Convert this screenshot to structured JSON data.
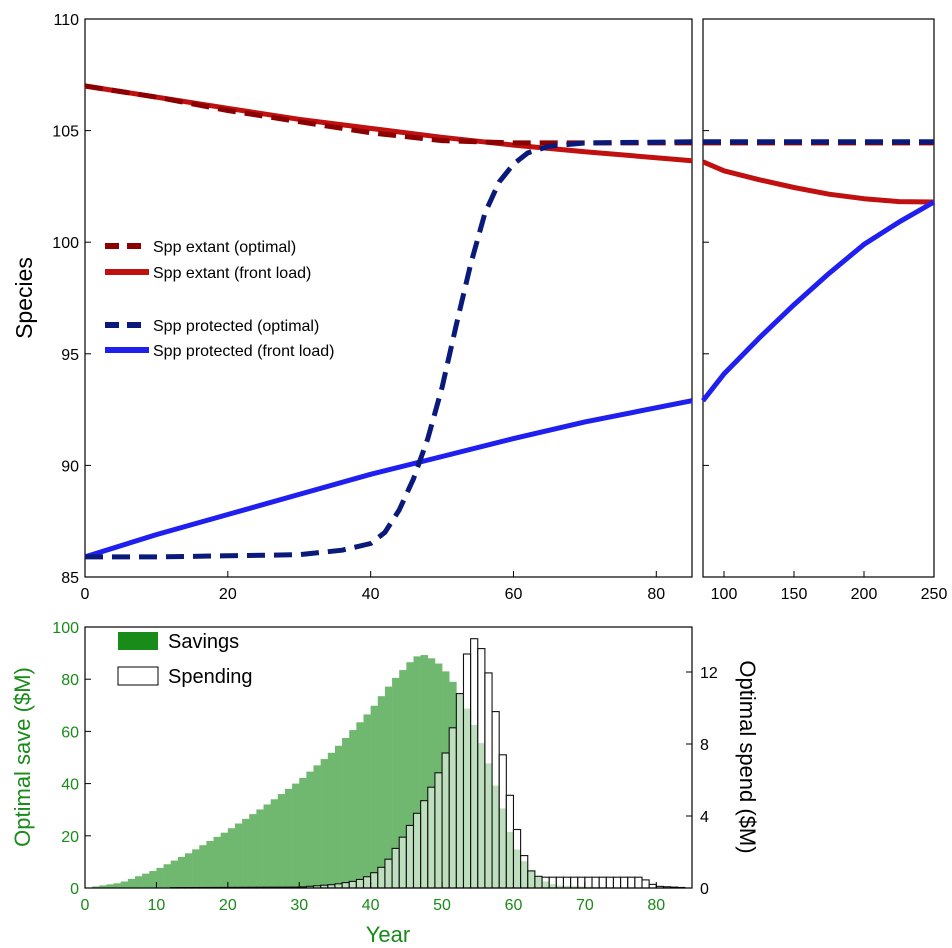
{
  "colors": {
    "extant_optimal": "#8b0000",
    "extant_front": "#c0100f",
    "protected_optimal": "#0a1a7a",
    "protected_front": "#1f1ff0",
    "savings": "#70b86f",
    "spending_edge": "#111111",
    "left_axis": "#188b18",
    "axis": "#000000"
  },
  "chart_data": [
    {
      "type": "line",
      "panel": "top-left",
      "ylabel": "Species",
      "xlim": [
        0,
        85
      ],
      "ylim": [
        85,
        110
      ],
      "xticks": [
        "0",
        "20",
        "40",
        "60",
        "80"
      ],
      "yticks": [
        "85",
        "90",
        "95",
        "100",
        "105",
        "110"
      ],
      "legend": {
        "placement": "middle-left",
        "entries": [
          "Spp extant  (optimal)",
          "Spp extant  (front load)",
          "Spp protected (optimal)",
          "Spp protected (front load)"
        ]
      },
      "series": [
        {
          "name": "Spp extant  (optimal)",
          "style": "dashed",
          "x": [
            0,
            10,
            20,
            30,
            40,
            50,
            60,
            70,
            85
          ],
          "y": [
            107.0,
            106.5,
            105.9,
            105.4,
            104.9,
            104.55,
            104.45,
            104.45,
            104.45
          ]
        },
        {
          "name": "Spp extant  (front load)",
          "style": "solid",
          "x": [
            0,
            10,
            20,
            30,
            40,
            50,
            60,
            70,
            85
          ],
          "y": [
            107.0,
            106.5,
            106.0,
            105.5,
            105.1,
            104.7,
            104.35,
            104.05,
            103.65
          ]
        },
        {
          "name": "Spp protected (optimal)",
          "style": "dashed",
          "x": [
            0,
            10,
            20,
            30,
            36,
            40,
            42,
            44,
            46,
            48,
            50,
            52,
            54,
            56,
            58,
            60,
            62,
            65,
            70,
            85
          ],
          "y": [
            85.9,
            85.9,
            85.95,
            86.0,
            86.2,
            86.5,
            87.0,
            88.0,
            89.4,
            91.2,
            93.5,
            96.3,
            99.0,
            101.3,
            102.7,
            103.5,
            104.0,
            104.3,
            104.45,
            104.5
          ]
        },
        {
          "name": "Spp protected (front load)",
          "style": "solid",
          "x": [
            0,
            10,
            20,
            30,
            40,
            50,
            60,
            70,
            85
          ],
          "y": [
            85.9,
            86.9,
            87.8,
            88.7,
            89.6,
            90.4,
            91.2,
            91.95,
            92.9
          ]
        }
      ]
    },
    {
      "type": "line",
      "panel": "top-right",
      "xlim": [
        85,
        250
      ],
      "ylim": [
        85,
        110
      ],
      "xticks": [
        "100",
        "150",
        "200",
        "250"
      ],
      "series": [
        {
          "name": "Spp extant  (optimal)",
          "style": "dashed",
          "x": [
            85,
            250
          ],
          "y": [
            104.45,
            104.45
          ]
        },
        {
          "name": "Spp extant  (front load)",
          "style": "solid",
          "x": [
            85,
            100,
            125,
            150,
            175,
            200,
            225,
            250
          ],
          "y": [
            103.6,
            103.2,
            102.8,
            102.45,
            102.15,
            101.95,
            101.82,
            101.8
          ]
        },
        {
          "name": "Spp protected (optimal)",
          "style": "dashed",
          "x": [
            85,
            250
          ],
          "y": [
            104.5,
            104.5
          ]
        },
        {
          "name": "Spp protected (front load)",
          "style": "solid",
          "x": [
            85,
            100,
            125,
            150,
            175,
            200,
            225,
            250
          ],
          "y": [
            92.9,
            94.1,
            95.7,
            97.2,
            98.6,
            99.9,
            100.9,
            101.8
          ]
        }
      ]
    },
    {
      "type": "bar",
      "panel": "bottom",
      "xlabel": "Year",
      "ylabel": "Optimal save ($M)",
      "ylabel_right": "Optimal spend ($M)",
      "xlim": [
        0,
        85
      ],
      "ylim": [
        0,
        100
      ],
      "ylim_right": [
        0,
        14.5
      ],
      "xticks": [
        "0",
        "10",
        "20",
        "30",
        "40",
        "50",
        "60",
        "70",
        "80"
      ],
      "yticks": [
        "0",
        "20",
        "40",
        "60",
        "80",
        "100"
      ],
      "yticks_right": [
        "0",
        "4",
        "8",
        "12"
      ],
      "legend": {
        "placement": "top-left",
        "entries": [
          "Savings",
          "Spending"
        ]
      },
      "series": [
        {
          "name": "Savings",
          "axis": "left",
          "x": [
            0,
            5,
            10,
            15,
            20,
            25,
            30,
            35,
            40,
            43,
            46,
            47,
            48,
            50,
            52,
            54,
            56,
            58,
            60,
            62,
            64,
            66,
            70,
            75,
            80,
            85
          ],
          "y": [
            0,
            2,
            7,
            14,
            22,
            31,
            41,
            53,
            68,
            79,
            88,
            89.5,
            89,
            85,
            77,
            66,
            52,
            35,
            17,
            8,
            3,
            1,
            0.5,
            0.2,
            0,
            0
          ]
        },
        {
          "name": "Spending",
          "axis": "right",
          "x": [
            0,
            30,
            35,
            38,
            40,
            42,
            44,
            46,
            48,
            50,
            52,
            53,
            54,
            55,
            56,
            57,
            58,
            59,
            60,
            61,
            62,
            63,
            64,
            65,
            78,
            79,
            80,
            85
          ],
          "y": [
            0,
            0.05,
            0.2,
            0.4,
            0.7,
            1.3,
            2.5,
            3.8,
            5.2,
            6.8,
            9.6,
            12.0,
            14.0,
            13.7,
            12.9,
            11.0,
            8.6,
            6.2,
            4.1,
            2.4,
            1.2,
            0.7,
            0.6,
            0.6,
            0.6,
            0.3,
            0.1,
            0
          ]
        }
      ]
    }
  ]
}
